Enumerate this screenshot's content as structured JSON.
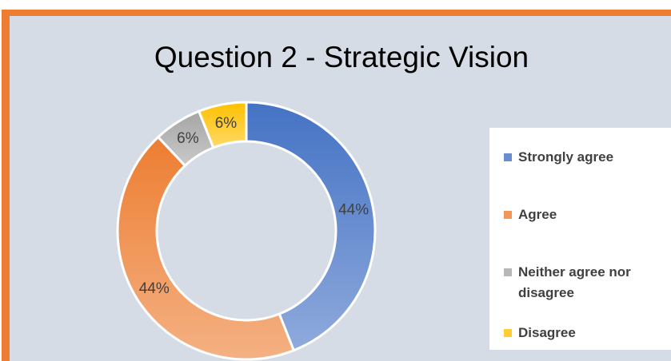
{
  "chart_data": {
    "type": "pie",
    "donut": true,
    "title": "Question 2 - Strategic Vision",
    "categories": [
      "Strongly agree",
      "Agree",
      "Neither agree nor disagree",
      "Disagree"
    ],
    "values": [
      44,
      44,
      6,
      6
    ],
    "value_labels": [
      "44%",
      "44%",
      "6%",
      "6%"
    ],
    "colors": [
      "#4472c4",
      "#ed7d31",
      "#a5a5a5",
      "#ffc000"
    ],
    "legend": "right"
  }
}
